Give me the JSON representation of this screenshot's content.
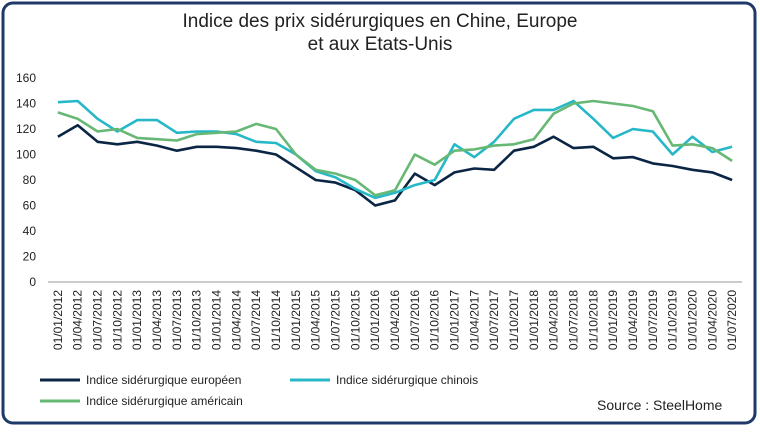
{
  "chart_data": {
    "type": "line",
    "title": [
      "Indice des prix sidérurgiques en Chine, Europe",
      "et aux Etats-Unis"
    ],
    "categories": [
      "01/01/2012",
      "01/04/2012",
      "01/07/2012",
      "01/10/2012",
      "01/01/2013",
      "01/04/2013",
      "01/07/2013",
      "01/10/2013",
      "01/01/2014",
      "01/04/2014",
      "01/07/2014",
      "01/10/2014",
      "01/01/2015",
      "01/04/2015",
      "01/07/2015",
      "01/10/2015",
      "01/01/2016",
      "01/04/2016",
      "01/07/2016",
      "01/10/2016",
      "01/01/2017",
      "01/04/2017",
      "01/07/2017",
      "01/10/2017",
      "01/01/2018",
      "01/04/2018",
      "01/07/2018",
      "01/10/2018",
      "01/01/2019",
      "01/04/2019",
      "01/07/2019",
      "01/10/2019",
      "01/01/2020",
      "01/04/2020",
      "01/07/2020"
    ],
    "series": [
      {
        "name": "Indice sidérurgique européen",
        "color": "#0b2545",
        "values": [
          114,
          123,
          110,
          108,
          110,
          107,
          103,
          106,
          106,
          105,
          103,
          100,
          90,
          80,
          78,
          72,
          60,
          64,
          85,
          76,
          86,
          89,
          88,
          103,
          106,
          114,
          105,
          106,
          97,
          98,
          93,
          91,
          88,
          86,
          80
        ]
      },
      {
        "name": "Indice sidérurgique chinois",
        "color": "#27b8c8",
        "values": [
          141,
          142,
          128,
          118,
          127,
          127,
          117,
          118,
          118,
          116,
          110,
          109,
          100,
          87,
          82,
          73,
          66,
          70,
          76,
          80,
          108,
          98,
          110,
          128,
          135,
          135,
          142,
          128,
          113,
          120,
          118,
          100,
          114,
          102,
          106
        ]
      },
      {
        "name": "Indice sidérurgique américain",
        "color": "#66b874",
        "values": [
          133,
          128,
          118,
          120,
          113,
          112,
          111,
          116,
          117,
          118,
          124,
          120,
          100,
          88,
          85,
          80,
          68,
          72,
          100,
          92,
          103,
          104,
          107,
          108,
          112,
          132,
          140,
          142,
          140,
          138,
          134,
          107,
          108,
          105,
          95
        ]
      }
    ],
    "ylim": [
      0,
      160
    ],
    "yticks": [
      0,
      20,
      40,
      60,
      80,
      100,
      120,
      140,
      160
    ],
    "source": "Source : SteelHome"
  }
}
